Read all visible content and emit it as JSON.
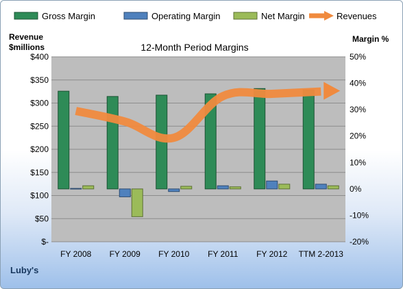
{
  "colors": {
    "gross": "#2e8b57",
    "operating": "#4f81bd",
    "net": "#9bbb59",
    "revenue": "#f08a3e",
    "plot_bg": "#bdbdbd"
  },
  "company": "Luby's",
  "chart_data": {
    "type": "bar",
    "title": "12-Month Period Margins",
    "categories": [
      "FY 2008",
      "FY 2009",
      "FY 2010",
      "FY 2011",
      "FY 2012",
      "TTM 2-2013"
    ],
    "left_axis": {
      "label_line1": "Revenue",
      "label_line2": "$millions",
      "ticks": [
        "$-",
        "$50",
        "$100",
        "$150",
        "$200",
        "$250",
        "$300",
        "$350",
        "$400"
      ],
      "range": [
        0,
        400
      ]
    },
    "right_axis": {
      "label": "Margin %",
      "ticks": [
        "-20%",
        "-10%",
        "0%",
        "10%",
        "20%",
        "30%",
        "40%",
        "50%"
      ],
      "range": [
        -20,
        50
      ]
    },
    "series": [
      {
        "name": "Gross Margin",
        "axis": "right",
        "kind": "bar",
        "values": [
          37,
          35,
          35.5,
          36,
          38,
          37.5
        ]
      },
      {
        "name": "Operating Margin",
        "axis": "right",
        "kind": "bar",
        "values": [
          0.2,
          -3,
          -1,
          1.2,
          3,
          1.8
        ]
      },
      {
        "name": "Net Margin",
        "axis": "right",
        "kind": "bar",
        "values": [
          1.2,
          -10.5,
          1,
          0.8,
          1.8,
          1.2
        ]
      },
      {
        "name": "Revenues",
        "axis": "left",
        "kind": "line",
        "values": [
          283,
          260,
          225,
          315,
          320,
          325
        ]
      }
    ],
    "legend_position": "top"
  }
}
